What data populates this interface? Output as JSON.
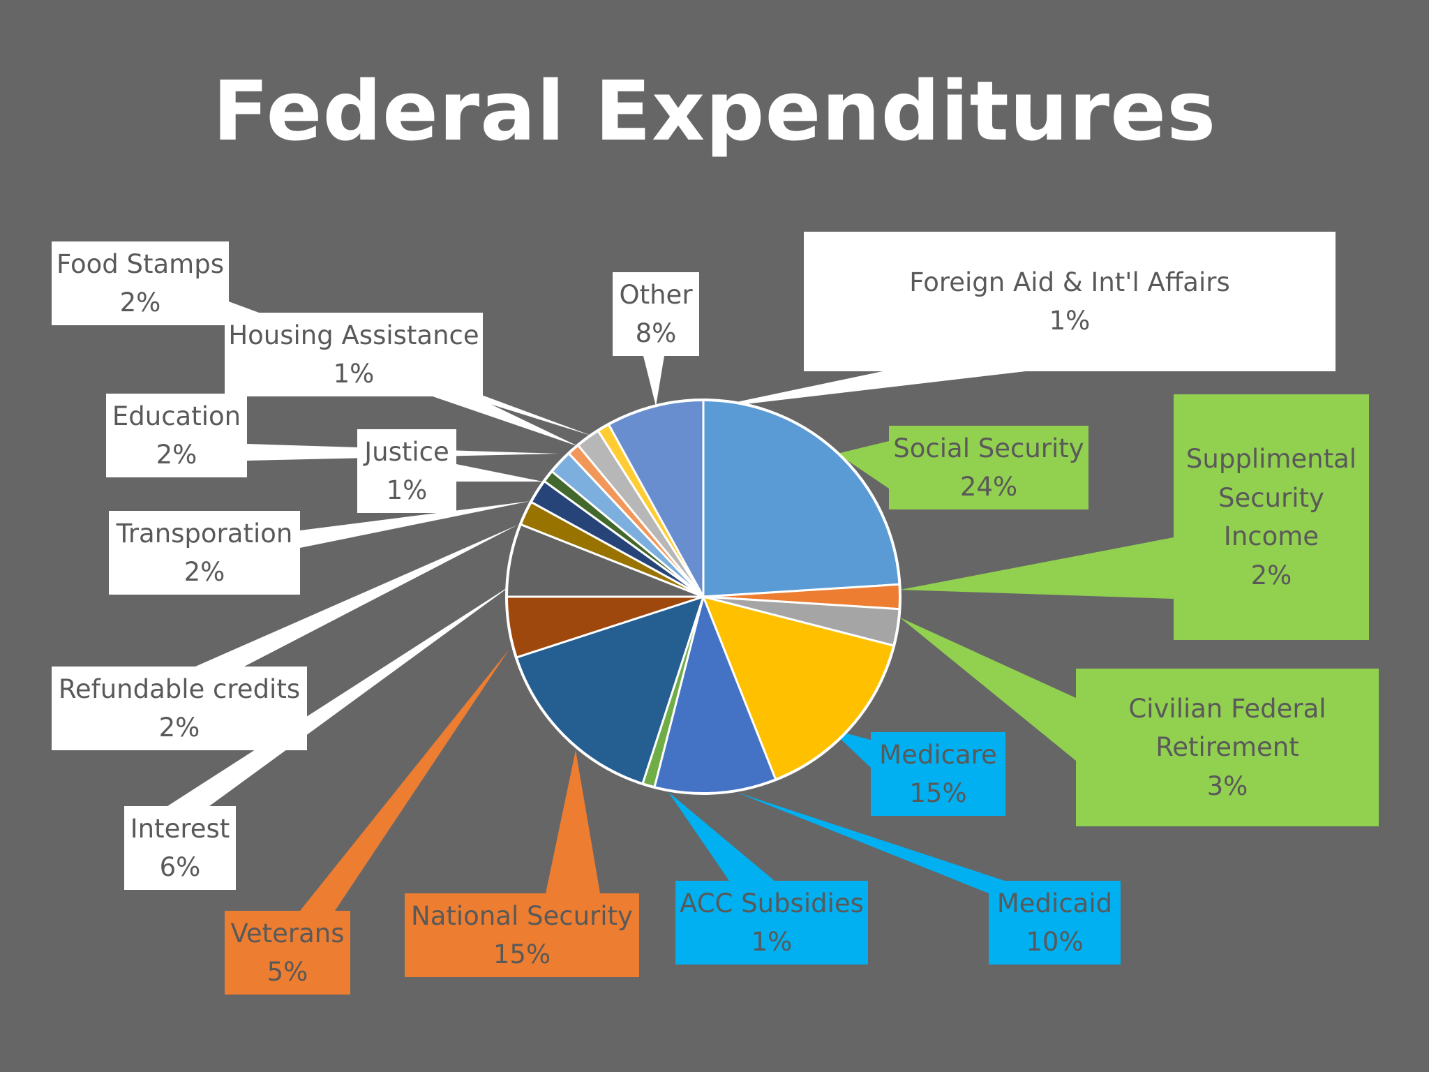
{
  "chart_data": {
    "type": "pie",
    "title": "Federal Expenditures",
    "slices": [
      {
        "label": "Social Security",
        "value": 24,
        "percent_label": "24%",
        "color": "#5b9bd5"
      },
      {
        "label": "Supplimental Security Income",
        "value": 2,
        "percent_label": "2%",
        "color": "#ed7d31"
      },
      {
        "label": "Civilian Federal Retirement",
        "value": 3,
        "percent_label": "3%",
        "color": "#a5a5a5"
      },
      {
        "label": "Medicare",
        "value": 15,
        "percent_label": "15%",
        "color": "#ffc000"
      },
      {
        "label": "Medicaid",
        "value": 10,
        "percent_label": "10%",
        "color": "#4472c4"
      },
      {
        "label": "ACC Subsidies",
        "value": 1,
        "percent_label": "1%",
        "color": "#70ad47"
      },
      {
        "label": "National Security",
        "value": 15,
        "percent_label": "15%",
        "color": "#255e91"
      },
      {
        "label": "Veterans",
        "value": 5,
        "percent_label": "5%",
        "color": "#9e480e"
      },
      {
        "label": "Interest",
        "value": 6,
        "percent_label": "6%",
        "color": "#636363"
      },
      {
        "label": "Refundable credits",
        "value": 2,
        "percent_label": "2%",
        "color": "#997300"
      },
      {
        "label": "Transporation",
        "value": 2,
        "percent_label": "2%",
        "color": "#264478"
      },
      {
        "label": "Justice",
        "value": 1,
        "percent_label": "1%",
        "color": "#43682b"
      },
      {
        "label": "Education",
        "value": 2,
        "percent_label": "2%",
        "color": "#7cafdd"
      },
      {
        "label": "Housing Assistance",
        "value": 1,
        "percent_label": "1%",
        "color": "#f1975a"
      },
      {
        "label": "Food Stamps",
        "value": 2,
        "percent_label": "2%",
        "color": "#b7b7b7"
      },
      {
        "label": "Foreign Aid & Int'l Affairs",
        "value": 1,
        "percent_label": "1%",
        "color": "#ffcd33"
      },
      {
        "label": "Other",
        "value": 8,
        "percent_label": "8%",
        "color": "#698ed0"
      }
    ],
    "legend": "none"
  }
}
